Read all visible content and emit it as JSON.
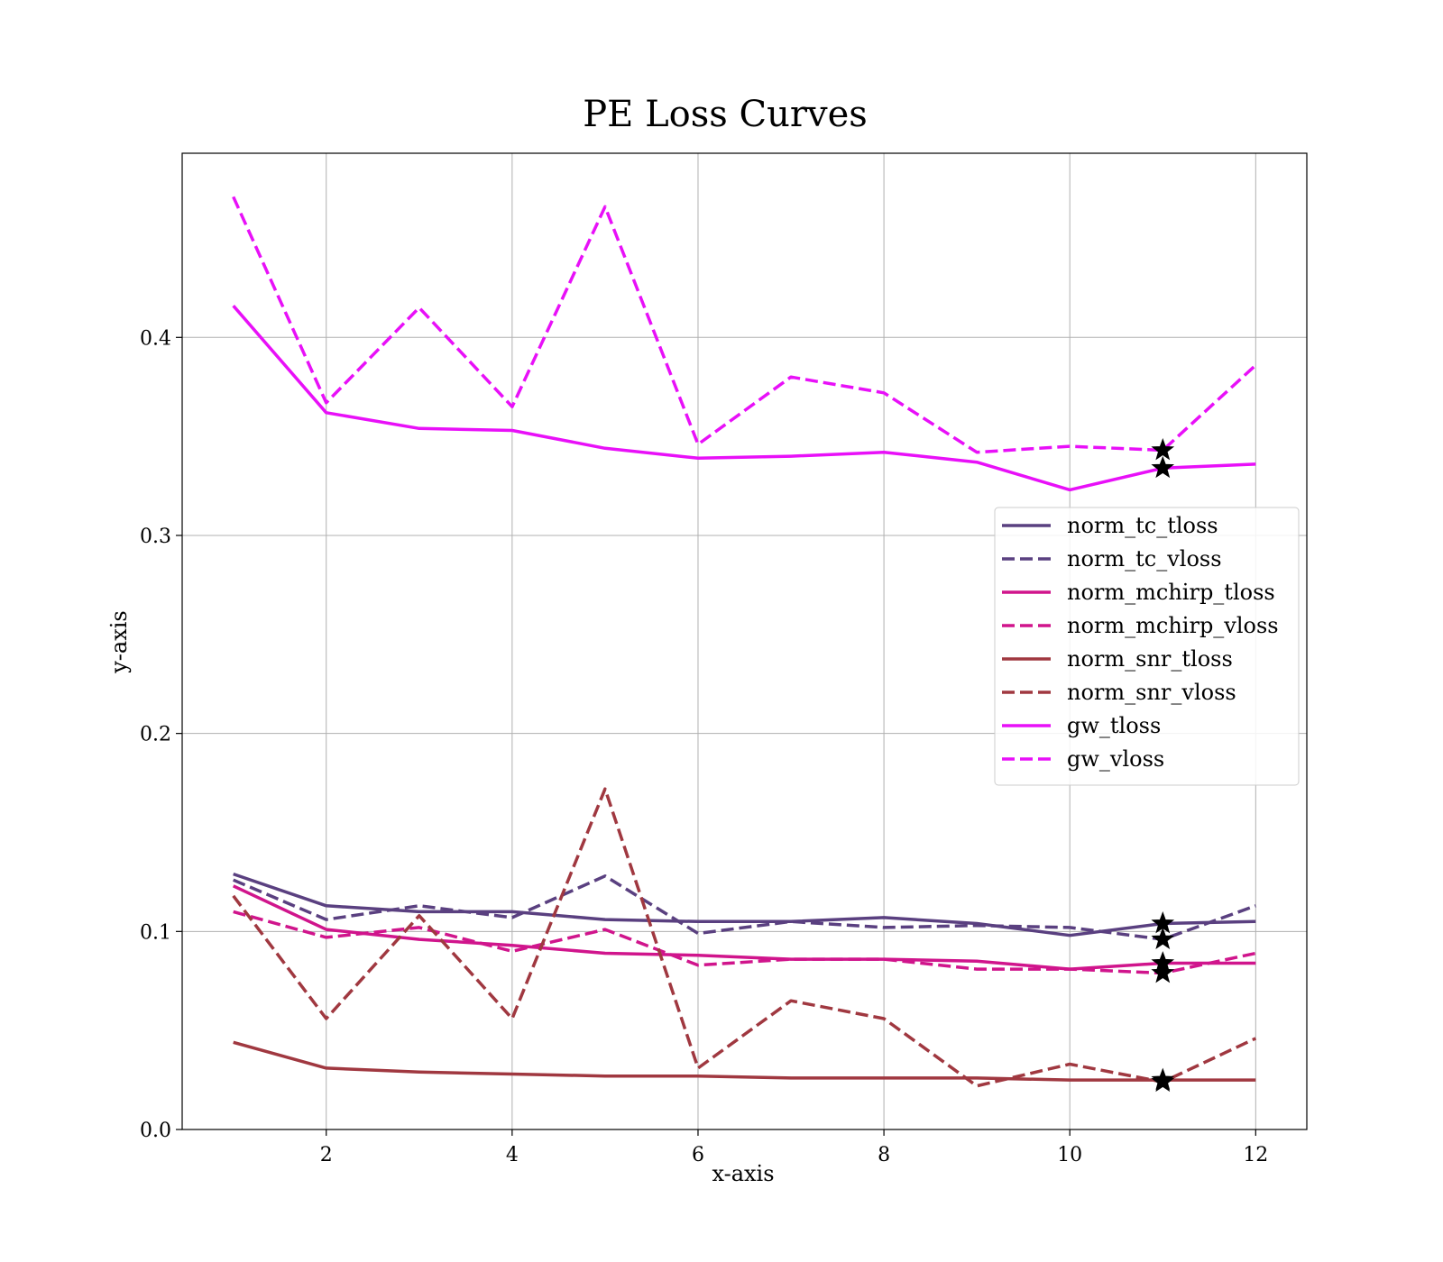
{
  "chart_data": {
    "type": "line",
    "title": "PE Loss Curves",
    "xlabel": "x-axis",
    "ylabel": "y-axis",
    "xlim": [
      0.45,
      12.55
    ],
    "ylim": [
      0.0,
      0.493
    ],
    "grid": true,
    "legend_position": "center-right",
    "x_ticks": [
      2,
      4,
      6,
      8,
      10,
      12
    ],
    "y_ticks": [
      0.0,
      0.1,
      0.2,
      0.3,
      0.4
    ],
    "x_tick_labels": [
      "2",
      "4",
      "6",
      "8",
      "10",
      "12"
    ],
    "y_tick_labels": [
      "0.0",
      "0.1",
      "0.2",
      "0.3",
      "0.4"
    ],
    "x": [
      1,
      2,
      3,
      4,
      5,
      6,
      7,
      8,
      9,
      10,
      11,
      12
    ],
    "series": [
      {
        "name": "norm_tc_tloss",
        "color": "#5a4080",
        "style": "solid",
        "values": [
          0.129,
          0.113,
          0.11,
          0.11,
          0.106,
          0.105,
          0.105,
          0.107,
          0.104,
          0.098,
          0.104,
          0.105
        ],
        "marker_index": 10
      },
      {
        "name": "norm_tc_vloss",
        "color": "#5a4080",
        "style": "dashed",
        "values": [
          0.126,
          0.106,
          0.113,
          0.107,
          0.128,
          0.099,
          0.105,
          0.102,
          0.103,
          0.102,
          0.096,
          0.113
        ],
        "marker_index": 10
      },
      {
        "name": "norm_mchirp_tloss",
        "color": "#d0158c",
        "style": "solid",
        "values": [
          0.123,
          0.101,
          0.096,
          0.093,
          0.089,
          0.088,
          0.086,
          0.086,
          0.085,
          0.081,
          0.084,
          0.084
        ],
        "marker_index": 10
      },
      {
        "name": "norm_mchirp_vloss",
        "color": "#d0158c",
        "style": "dashed",
        "values": [
          0.11,
          0.097,
          0.102,
          0.09,
          0.101,
          0.083,
          0.086,
          0.086,
          0.081,
          0.081,
          0.079,
          0.089
        ],
        "marker_index": 10
      },
      {
        "name": "norm_snr_tloss",
        "color": "#a03840",
        "style": "solid",
        "values": [
          0.044,
          0.031,
          0.029,
          0.028,
          0.027,
          0.027,
          0.026,
          0.026,
          0.026,
          0.025,
          0.025,
          0.025
        ],
        "marker_index": 10
      },
      {
        "name": "norm_snr_vloss",
        "color": "#a03840",
        "style": "dashed",
        "values": [
          0.118,
          0.056,
          0.108,
          0.056,
          0.172,
          0.031,
          0.065,
          0.056,
          0.022,
          0.033,
          0.024,
          0.046
        ],
        "marker_index": 10
      },
      {
        "name": "gw_tloss",
        "color": "#e810f8",
        "style": "solid",
        "values": [
          0.416,
          0.362,
          0.354,
          0.353,
          0.344,
          0.339,
          0.34,
          0.342,
          0.337,
          0.323,
          0.334,
          0.336
        ],
        "marker_index": 10
      },
      {
        "name": "gw_vloss",
        "color": "#e810f8",
        "style": "dashed",
        "values": [
          0.471,
          0.367,
          0.415,
          0.365,
          0.466,
          0.346,
          0.38,
          0.372,
          0.342,
          0.345,
          0.343,
          0.386
        ],
        "marker_index": 10
      }
    ]
  }
}
